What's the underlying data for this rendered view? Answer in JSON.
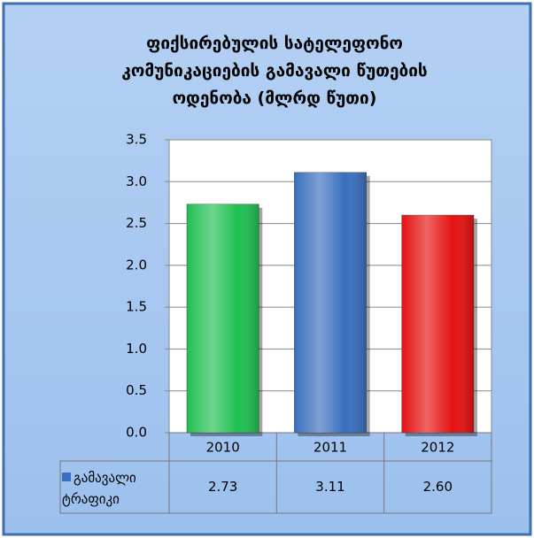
{
  "chart_data": {
    "type": "bar",
    "title": "ფიქსირებულის სატელეფონო კომუნიკაციების გამავალი წუთების ოდენობა (მლრდ წუთი)",
    "categories": [
      "2010",
      "2011",
      "2012"
    ],
    "series": [
      {
        "name": "გამავალი ტრაფიკი",
        "color": "#3a6fbf",
        "colors": [
          "#1fc052",
          "#3a6fbf",
          "#e51212"
        ],
        "values": [
          2.73,
          3.11,
          2.6
        ],
        "value_labels": [
          "2.73",
          "3.11",
          "2.60"
        ]
      }
    ],
    "ylim": [
      0,
      3.5
    ],
    "yticks": [
      {
        "value": 0,
        "label": "0.0"
      },
      0.5,
      {
        "value": 1,
        "label": "1.0"
      },
      1.5,
      {
        "value": 2,
        "label": "2.0"
      },
      2.5,
      {
        "value": 3,
        "label": "3.0"
      },
      3.5
    ],
    "grid": true
  }
}
